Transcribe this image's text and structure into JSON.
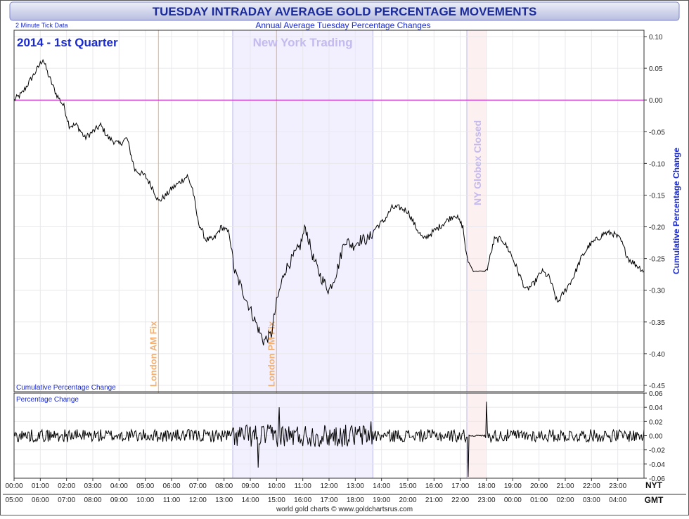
{
  "title": "TUESDAY INTRADAY AVERAGE GOLD PERCENTAGE MOVEMENTS",
  "subtitle": "Annual Average Tuesday Percentage Changes",
  "tick_note": "2 Minute Tick Data",
  "period_label": "2014 - 1st Quarter",
  "footer": "world gold charts © www.goldchartsrus.com",
  "colors": {
    "title": "#1a2a9a",
    "blue_text": "#1a2acc",
    "title_bg_top": "#eceff8",
    "title_bg_bottom": "#b8bde0",
    "price_line": "#000000",
    "zero_line": "#cc00cc",
    "london_fix": "#f4b070",
    "ny_band_fill": "#f2f0ff",
    "ny_band_edge": "#b8b8e8",
    "ny_label": "#c4baf0",
    "globex_fill": "#fdf0f0",
    "globex_label": "#c4baf0",
    "grid": "#e8e8ec",
    "axis_text": "#222222"
  },
  "chart_data": [
    {
      "type": "line",
      "title": "2014 - 1st Quarter",
      "panel_label": "Cumulative Percentage Change",
      "ylabel": "Cumulative Percentage Change",
      "ylim": [
        -0.46,
        0.11
      ],
      "yticks": [
        "0.10",
        "0.05",
        "0.00",
        "-0.05",
        "-0.10",
        "-0.15",
        "-0.20",
        "-0.25",
        "-0.30",
        "-0.35",
        "-0.40",
        "-0.45"
      ],
      "xlim": [
        0,
        24
      ],
      "x_unit": "hours NY time",
      "grid": true,
      "reference_line": 0.0,
      "bands": [
        {
          "label": "New York Trading",
          "start": 8.33,
          "end": 13.67
        },
        {
          "label": "NY Globex Closed",
          "start": 17.25,
          "end": 18.0
        }
      ],
      "markers": [
        {
          "label": "London AM Fix",
          "x": 5.5
        },
        {
          "label": "London PM Fix",
          "x": 10.0
        }
      ],
      "series": [
        {
          "x": [
            0.0,
            0.3,
            0.6,
            0.9,
            1.1,
            1.3,
            1.6,
            1.9,
            2.1,
            2.4,
            2.7,
            3.0,
            3.3,
            3.6,
            4.0,
            4.3,
            4.6,
            5.0,
            5.3,
            5.5,
            5.8,
            6.0,
            6.3,
            6.6,
            6.8,
            7.0,
            7.3,
            7.6,
            7.9,
            8.2,
            8.4,
            8.6,
            8.9,
            9.2,
            9.5,
            9.8,
            10.0,
            10.3,
            10.6,
            10.9,
            11.1,
            11.4,
            11.7,
            12.0,
            12.3,
            12.6,
            12.9,
            13.2,
            13.5,
            13.8,
            14.1,
            14.4,
            14.7,
            15.0,
            15.3,
            15.6,
            15.9,
            16.2,
            16.5,
            16.8,
            17.1,
            17.25,
            17.5,
            17.8,
            18.0,
            18.3,
            18.6,
            18.9,
            19.2,
            19.5,
            19.8,
            20.1,
            20.4,
            20.7,
            21.0,
            21.3,
            21.6,
            21.9,
            22.2,
            22.5,
            22.8,
            23.1,
            23.4,
            23.7,
            24.0
          ],
          "y": [
            0.0,
            0.01,
            0.03,
            0.05,
            0.065,
            0.04,
            0.01,
            -0.01,
            -0.04,
            -0.04,
            -0.06,
            -0.05,
            -0.04,
            -0.06,
            -0.07,
            -0.06,
            -0.11,
            -0.12,
            -0.14,
            -0.16,
            -0.15,
            -0.14,
            -0.13,
            -0.12,
            -0.14,
            -0.19,
            -0.22,
            -0.22,
            -0.2,
            -0.21,
            -0.27,
            -0.29,
            -0.32,
            -0.35,
            -0.38,
            -0.37,
            -0.32,
            -0.27,
            -0.25,
            -0.23,
            -0.2,
            -0.25,
            -0.28,
            -0.3,
            -0.27,
            -0.22,
            -0.23,
            -0.22,
            -0.22,
            -0.2,
            -0.19,
            -0.17,
            -0.17,
            -0.175,
            -0.2,
            -0.22,
            -0.21,
            -0.2,
            -0.19,
            -0.18,
            -0.2,
            -0.25,
            -0.27,
            -0.27,
            -0.27,
            -0.22,
            -0.22,
            -0.24,
            -0.27,
            -0.3,
            -0.29,
            -0.27,
            -0.28,
            -0.32,
            -0.3,
            -0.28,
            -0.25,
            -0.23,
            -0.22,
            -0.21,
            -0.21,
            -0.22,
            -0.25,
            -0.26,
            -0.27
          ]
        }
      ]
    },
    {
      "type": "line",
      "panel_label": "Percentage Change",
      "ylim": [
        -0.06,
        0.06
      ],
      "yticks": [
        "0.06",
        "0.04",
        "0.02",
        "0.00",
        "-0.02",
        "-0.04",
        "-0.06"
      ],
      "xlim": [
        0,
        24
      ],
      "x_top_labels": [
        "00:00",
        "01:00",
        "02:00",
        "03:00",
        "04:00",
        "05:00",
        "06:00",
        "07:00",
        "08:00",
        "09:00",
        "10:00",
        "11:00",
        "12:00",
        "13:00",
        "14:00",
        "15:00",
        "16:00",
        "17:00",
        "18:00",
        "19:00",
        "20:00",
        "21:00",
        "22:00",
        "23:00"
      ],
      "x_bottom_labels": [
        "05:00",
        "06:00",
        "07:00",
        "08:00",
        "09:00",
        "10:00",
        "11:00",
        "12:00",
        "13:00",
        "14:00",
        "15:00",
        "16:00",
        "17:00",
        "18:00",
        "19:00",
        "20:00",
        "21:00",
        "22:00",
        "23:00",
        "00:00",
        "01:00",
        "02:00",
        "03:00",
        "04:00"
      ],
      "x_top_unit": "NYT",
      "x_bottom_unit": "GMT",
      "spikes": [
        {
          "x": 9.3,
          "y": -0.045
        },
        {
          "x": 10.1,
          "y": 0.04
        },
        {
          "x": 17.3,
          "y": -0.058
        },
        {
          "x": 18.0,
          "y": 0.048
        },
        {
          "x": 13.6,
          "y": 0.02
        }
      ]
    }
  ]
}
